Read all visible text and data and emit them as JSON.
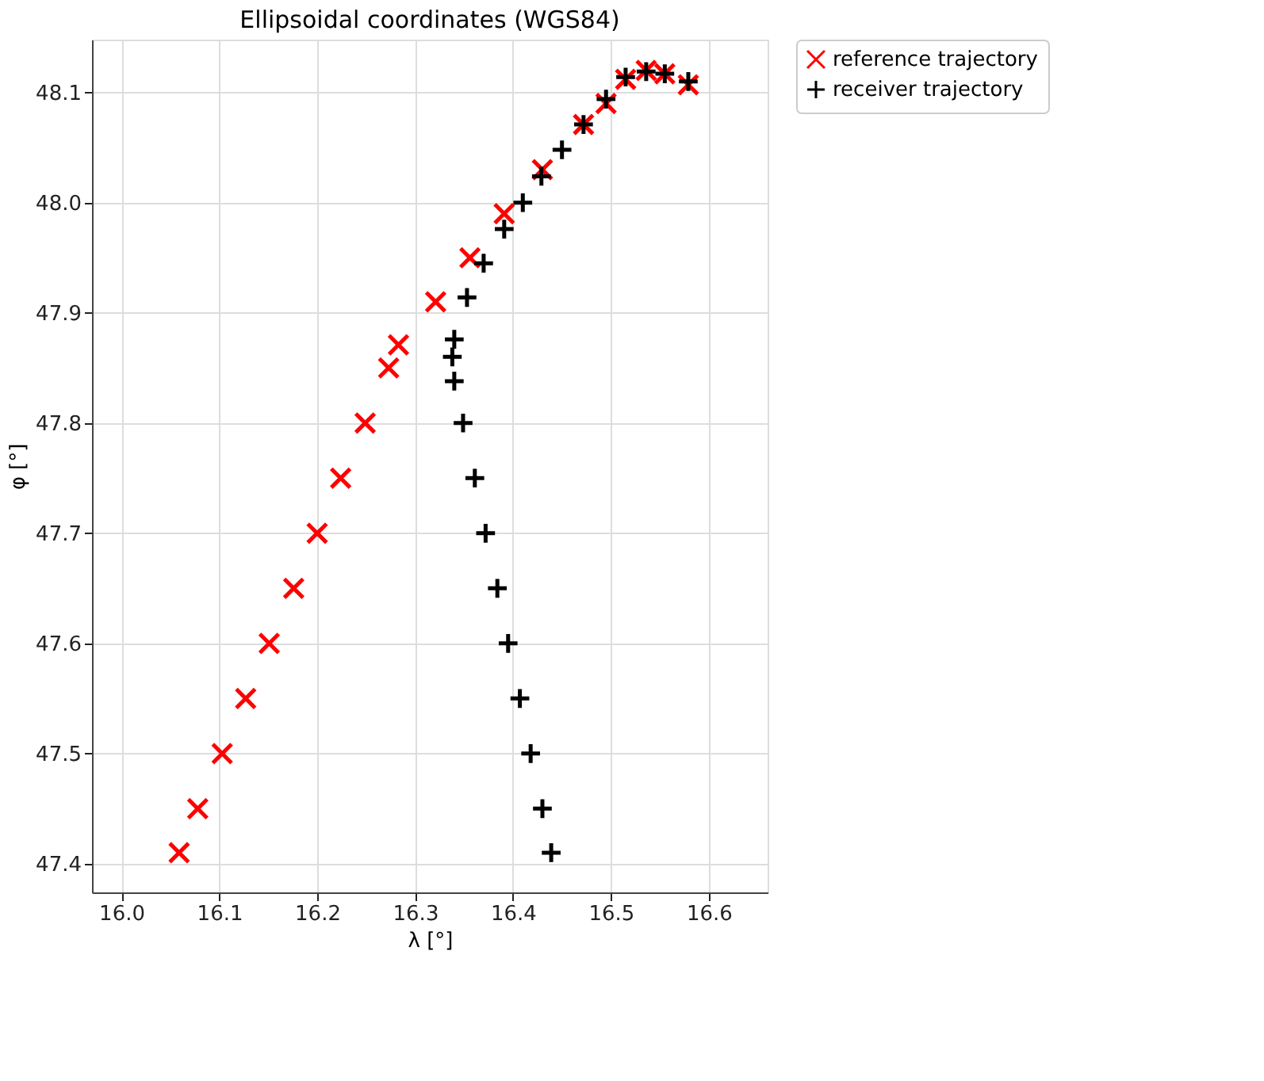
{
  "chart_data": {
    "type": "scatter",
    "title": "Ellipsoidal coordinates (WGS84)",
    "xlabel": "λ [°]",
    "ylabel": "φ [°]",
    "xlim": [
      15.97,
      16.66
    ],
    "ylim": [
      47.374,
      48.148
    ],
    "xticks": [
      {
        "value": 16,
        "label": "16.0"
      },
      16.1,
      16.2,
      16.3,
      16.4,
      16.5,
      16.6
    ],
    "yticks": [
      47.4,
      47.5,
      47.6,
      47.7,
      47.8,
      47.9,
      {
        "value": 48,
        "label": "48.0"
      },
      48.1
    ],
    "grid": true,
    "legend": "right",
    "series": [
      {
        "name": "reference trajectory",
        "color": "#ff0000",
        "marker": "cross",
        "x": [
          16.059,
          16.078,
          16.103,
          16.127,
          16.151,
          16.176,
          16.2,
          16.224,
          16.249,
          16.273,
          16.283,
          16.321,
          16.356,
          16.391,
          16.43,
          16.472,
          16.495,
          16.515,
          16.536,
          16.555,
          16.579
        ],
        "values": [
          47.41,
          47.45,
          47.5,
          47.55,
          47.6,
          47.65,
          47.7,
          47.75,
          47.8,
          47.85,
          47.871,
          47.91,
          47.95,
          47.99,
          48.03,
          48.071,
          48.09,
          48.112,
          48.12,
          48.117,
          48.107
        ]
      },
      {
        "name": "receiver trajectory",
        "color": "#000000",
        "marker": "cross",
        "x": [
          16.439,
          16.43,
          16.418,
          16.407,
          16.395,
          16.384,
          16.372,
          16.361,
          16.349,
          16.34,
          16.338,
          16.34,
          16.353,
          16.37,
          16.391,
          16.41,
          16.429,
          16.45,
          16.472,
          16.495,
          16.515,
          16.536,
          16.555,
          16.579
        ],
        "values": [
          47.41,
          47.45,
          47.5,
          47.55,
          47.6,
          47.65,
          47.7,
          47.75,
          47.8,
          47.838,
          47.86,
          47.876,
          47.914,
          47.945,
          47.976,
          48.0,
          48.024,
          48.048,
          48.071,
          48.094,
          48.114,
          48.119,
          48.117,
          48.11
        ]
      }
    ]
  }
}
